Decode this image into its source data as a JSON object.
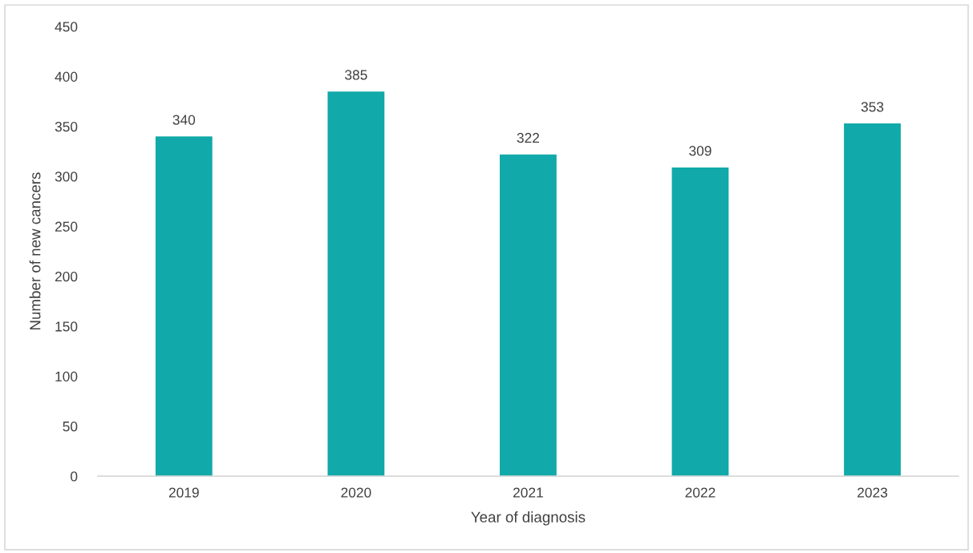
{
  "chart_data": {
    "type": "bar",
    "xlabel": "Year of diagnosis",
    "ylabel": "Number of new cancers",
    "categories": [
      "2019",
      "2020",
      "2021",
      "2022",
      "2023"
    ],
    "values": [
      340,
      385,
      322,
      309,
      353
    ],
    "color": "#11a9a9",
    "ylim": [
      0,
      450
    ],
    "yticks": [
      0,
      50,
      100,
      150,
      200,
      250,
      300,
      350,
      400,
      450
    ],
    "data_labels": true,
    "grid": false,
    "legend": false
  }
}
